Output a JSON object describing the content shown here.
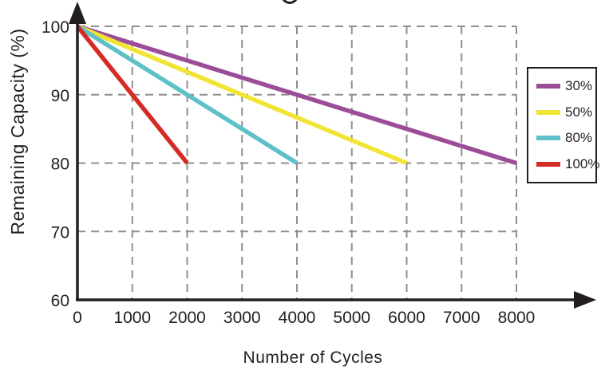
{
  "chart_data": {
    "type": "line",
    "xlabel": "Number of Cycles",
    "ylabel": "Remaining Capacity (%)",
    "xlim": [
      0,
      8000
    ],
    "ylim": [
      60,
      100
    ],
    "x_ticks": [
      0,
      1000,
      2000,
      3000,
      4000,
      5000,
      6000,
      7000,
      8000
    ],
    "y_ticks": [
      60,
      70,
      80,
      90,
      100
    ],
    "grid": "dashed",
    "legend_position": "right",
    "series": [
      {
        "name": "30%",
        "color": "#9c4d98",
        "points": [
          [
            0,
            100
          ],
          [
            8000,
            80
          ]
        ]
      },
      {
        "name": "50%",
        "color": "#f2e434",
        "points": [
          [
            0,
            100
          ],
          [
            6000,
            80
          ]
        ]
      },
      {
        "name": "80%",
        "color": "#5ec1c7",
        "points": [
          [
            0,
            100
          ],
          [
            4000,
            80
          ]
        ]
      },
      {
        "name": "100%",
        "color": "#d52b26",
        "points": [
          [
            0,
            100
          ],
          [
            2000,
            80
          ]
        ]
      }
    ]
  },
  "colors": {
    "axis": "#231f20",
    "grid": "#8f8f8f",
    "text": "#231f20"
  }
}
